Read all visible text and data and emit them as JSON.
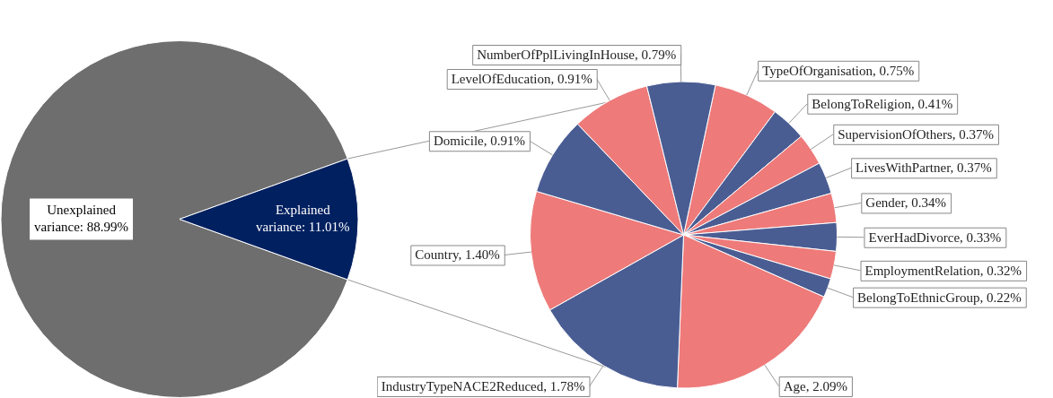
{
  "chart_data": [
    {
      "type": "pie",
      "categories": [
        "Unexplained variance",
        "Explained variance"
      ],
      "values": [
        88.99,
        11.01
      ],
      "value_labels": [
        "88.99%",
        "11.01%"
      ],
      "colors": [
        "#6e6e6e",
        "#002060"
      ]
    },
    {
      "type": "pie",
      "categories": [
        "TypeOfOrganisation",
        "BelongToReligion",
        "SupervisionOfOthers",
        "LivesWithPartner",
        "Gender",
        "EverHadDivorce",
        "EmploymentRelation",
        "BelongToEthnicGroup",
        "Age",
        "IndustryTypeNACE2Reduced",
        "Country",
        "Domicile",
        "LevelOfEducation",
        "NumberOfPplLivingInHouse"
      ],
      "values": [
        0.75,
        0.41,
        0.37,
        0.37,
        0.34,
        0.33,
        0.32,
        0.22,
        2.09,
        1.78,
        1.4,
        0.91,
        0.91,
        0.79
      ],
      "value_labels": [
        "0.75%",
        "0.41%",
        "0.37%",
        "0.37%",
        "0.34%",
        "0.33%",
        "0.32%",
        "0.22%",
        "2.09%",
        "1.78%",
        "1.40%",
        "0.91%",
        "0.91%",
        "0.79%"
      ],
      "colors": [
        "#ee7a7a",
        "#4a5d93",
        "#ee7a7a",
        "#4a5d93",
        "#ee7a7a",
        "#4a5d93",
        "#ee7a7a",
        "#4a5d93",
        "#ee7a7a",
        "#4a5d93",
        "#ee7a7a",
        "#4a5d93",
        "#ee7a7a",
        "#4a5d93"
      ]
    }
  ]
}
